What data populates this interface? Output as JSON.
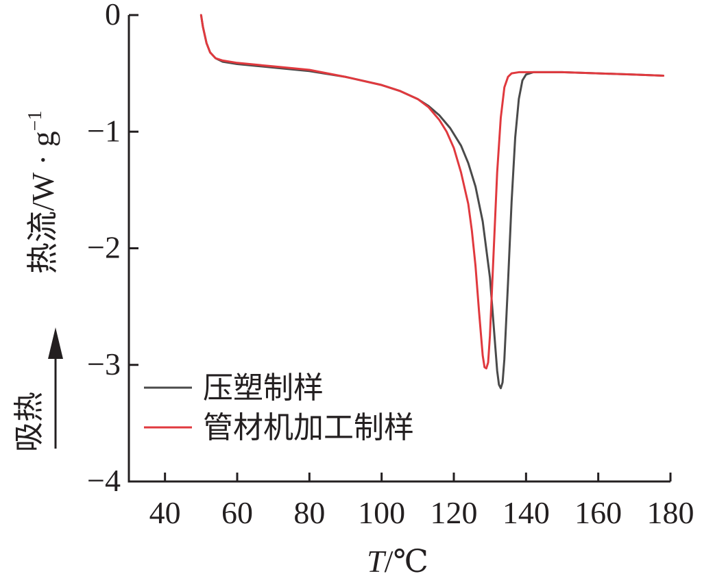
{
  "chart_data": {
    "type": "line",
    "xlabel_italic": "T",
    "xlabel_rest": "/℃",
    "ylabel_main": "热流/W · g",
    "ylabel_sup": "−1",
    "endotherm_label": "吸热",
    "xlim": [
      30,
      180
    ],
    "ylim": [
      -4,
      0
    ],
    "xticks": [
      40,
      60,
      80,
      100,
      120,
      140,
      160,
      180
    ],
    "yticks": [
      0,
      -1,
      -2,
      -3,
      -4
    ],
    "ytick_labels": [
      "0",
      "−1",
      "−2",
      "−3",
      "−4"
    ],
    "grid": false,
    "legend_position": "lower-left",
    "series": [
      {
        "name": "压塑制样",
        "color": "#4a4a4a",
        "x": [
          50,
          50.5,
          51.5,
          52.5,
          54,
          56,
          60,
          70,
          80,
          90,
          100,
          105,
          110,
          113,
          116,
          119,
          122,
          124,
          126,
          128,
          130,
          131,
          132,
          132.5,
          133,
          133.5,
          134,
          135,
          136,
          137,
          138,
          139,
          140,
          142,
          146,
          150,
          160,
          170,
          178
        ],
        "y": [
          0,
          -0.1,
          -0.24,
          -0.32,
          -0.37,
          -0.4,
          -0.42,
          -0.45,
          -0.48,
          -0.53,
          -0.6,
          -0.65,
          -0.72,
          -0.78,
          -0.86,
          -0.97,
          -1.12,
          -1.27,
          -1.47,
          -1.77,
          -2.25,
          -2.65,
          -3.05,
          -3.17,
          -3.2,
          -3.15,
          -2.95,
          -2.3,
          -1.6,
          -1.05,
          -0.72,
          -0.56,
          -0.51,
          -0.49,
          -0.49,
          -0.49,
          -0.5,
          -0.51,
          -0.52
        ]
      },
      {
        "name": "管材机加工制样",
        "color": "#e0393e",
        "x": [
          50,
          50.5,
          51.5,
          52.5,
          54,
          56,
          60,
          70,
          80,
          90,
          100,
          105,
          110,
          113,
          116,
          118,
          120,
          122,
          124,
          125,
          126,
          127,
          128,
          128.5,
          129,
          129.5,
          130,
          131,
          132,
          133,
          134,
          135,
          136,
          138,
          142,
          150,
          160,
          170,
          178
        ],
        "y": [
          0,
          -0.1,
          -0.24,
          -0.32,
          -0.37,
          -0.39,
          -0.41,
          -0.44,
          -0.47,
          -0.53,
          -0.6,
          -0.65,
          -0.72,
          -0.79,
          -0.9,
          -1.0,
          -1.14,
          -1.35,
          -1.62,
          -1.85,
          -2.15,
          -2.55,
          -2.92,
          -3.02,
          -3.03,
          -2.98,
          -2.75,
          -2.05,
          -1.35,
          -0.88,
          -0.62,
          -0.53,
          -0.5,
          -0.49,
          -0.49,
          -0.49,
          -0.5,
          -0.51,
          -0.52
        ]
      }
    ]
  }
}
